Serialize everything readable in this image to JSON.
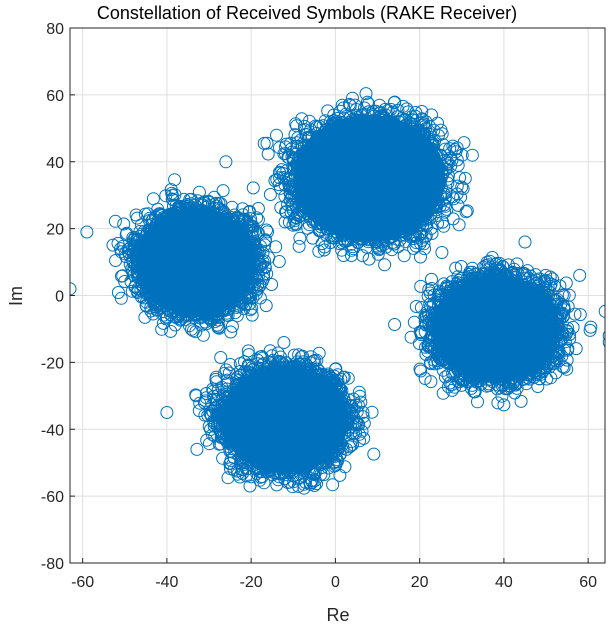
{
  "chart_data": {
    "type": "scatter",
    "title": "Constellation of Received Symbols (RAKE Receiver)",
    "xlabel": "Re",
    "ylabel": "Im",
    "xlim": [
      -63,
      64
    ],
    "ylim": [
      -80,
      80
    ],
    "x_ticks": [
      -60,
      -40,
      -20,
      0,
      20,
      40,
      60
    ],
    "y_ticks": [
      -80,
      -60,
      -40,
      -20,
      0,
      20,
      40,
      60,
      80
    ],
    "x_tick_labels": [
      "-60",
      "-40",
      "-20",
      "0",
      "20",
      "40",
      "60"
    ],
    "y_tick_labels": [
      "-80",
      "-60",
      "-40",
      "-20",
      "0",
      "20",
      "40",
      "60",
      "80"
    ],
    "grid": true,
    "marker": "open-circle",
    "color": "#0072BD",
    "clusters": [
      {
        "center": [
          -33,
          10
        ],
        "spread": [
          15,
          17
        ]
      },
      {
        "center": [
          8,
          35
        ],
        "spread": [
          19,
          20
        ]
      },
      {
        "center": [
          38,
          -10
        ],
        "spread": [
          16,
          17
        ]
      },
      {
        "center": [
          -12,
          -37
        ],
        "spread": [
          16,
          17
        ]
      }
    ],
    "outliers": [
      {
        "x": -63,
        "y": 2
      },
      {
        "x": -59,
        "y": 19
      },
      {
        "x": -40,
        "y": -35
      },
      {
        "x": 65,
        "y": -12
      },
      {
        "x": 65,
        "y": -14
      },
      {
        "x": 58,
        "y": 6
      },
      {
        "x": -26,
        "y": 40
      },
      {
        "x": 45,
        "y": 16
      }
    ]
  }
}
